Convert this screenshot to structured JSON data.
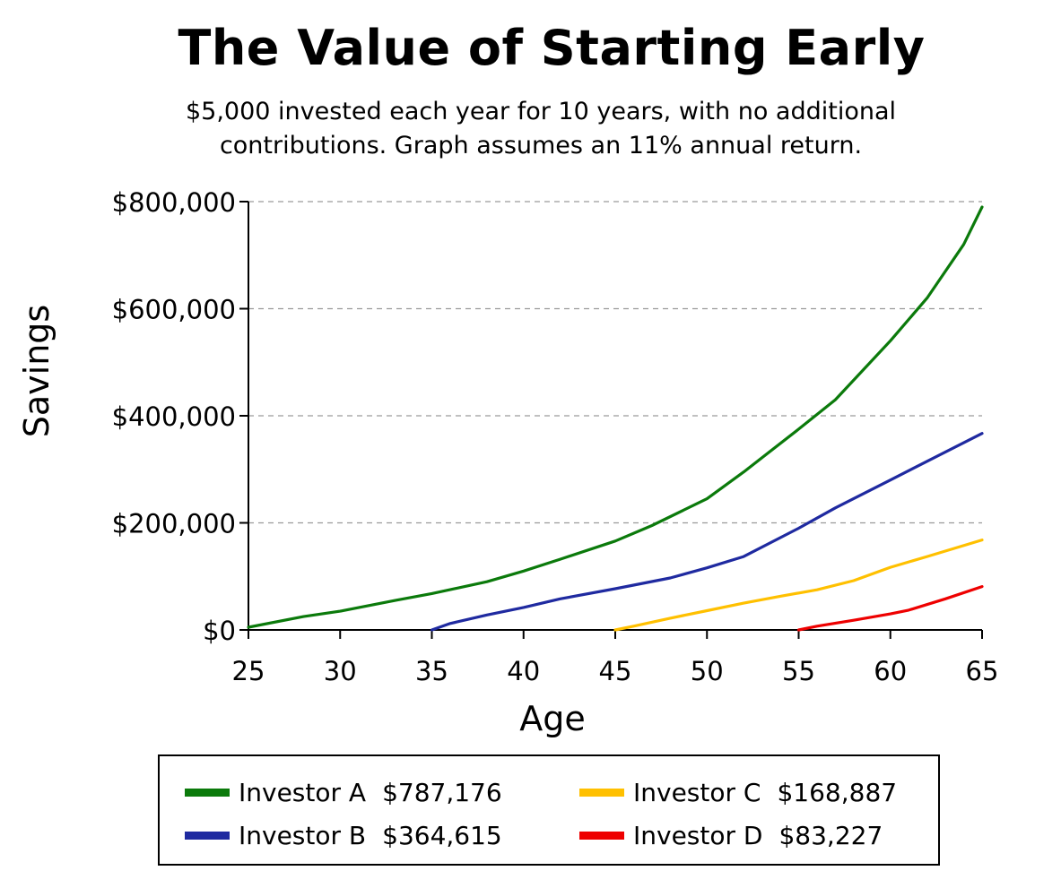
{
  "chart_data": {
    "type": "line",
    "title": "The Value of Starting Early",
    "subtitle_lines": [
      "$5,000 invested each year for 10 years, with no additional",
      "contributions. Graph assumes an 11% annual return."
    ],
    "xlabel": "Age",
    "ylabel": "Savings",
    "xlim": [
      25,
      65
    ],
    "ylim": [
      0,
      800000
    ],
    "x_ticks": [
      25,
      30,
      35,
      40,
      45,
      50,
      55,
      60,
      65
    ],
    "y_ticks": [
      0,
      200000,
      400000,
      600000,
      800000
    ],
    "y_tick_labels": [
      "$0",
      "$200,000",
      "$400,000",
      "$600,000",
      "$800,000"
    ],
    "grid": "horizontal dashed",
    "series": [
      {
        "name": "Investor A",
        "final_label": "$787,176",
        "color": "#0b7a0b",
        "points": [
          [
            25,
            5000
          ],
          [
            28,
            25000
          ],
          [
            30,
            35000
          ],
          [
            33,
            55000
          ],
          [
            35,
            68000
          ],
          [
            38,
            90000
          ],
          [
            40,
            110000
          ],
          [
            42,
            132000
          ],
          [
            45,
            166000
          ],
          [
            47,
            195000
          ],
          [
            50,
            245000
          ],
          [
            52,
            295000
          ],
          [
            55,
            375000
          ],
          [
            57,
            430000
          ],
          [
            60,
            540000
          ],
          [
            62,
            620000
          ],
          [
            64,
            720000
          ],
          [
            65,
            790000
          ]
        ]
      },
      {
        "name": "Investor B",
        "final_label": "$364,615",
        "color": "#1f2aa0",
        "points": [
          [
            35,
            0
          ],
          [
            36,
            12000
          ],
          [
            38,
            28000
          ],
          [
            40,
            42000
          ],
          [
            42,
            58000
          ],
          [
            45,
            77000
          ],
          [
            48,
            97000
          ],
          [
            50,
            116000
          ],
          [
            52,
            137000
          ],
          [
            55,
            190000
          ],
          [
            57,
            228000
          ],
          [
            60,
            280000
          ],
          [
            62,
            315000
          ],
          [
            65,
            367000
          ]
        ]
      },
      {
        "name": "Investor C",
        "final_label": "$168,887",
        "color": "#ffc000",
        "points": [
          [
            45,
            0
          ],
          [
            46,
            7000
          ],
          [
            48,
            22000
          ],
          [
            50,
            36000
          ],
          [
            52,
            50000
          ],
          [
            54,
            63000
          ],
          [
            56,
            75000
          ],
          [
            58,
            92000
          ],
          [
            60,
            117000
          ],
          [
            62,
            137000
          ],
          [
            65,
            168000
          ]
        ]
      },
      {
        "name": "Investor D",
        "final_label": "$83,227",
        "color": "#ee0000",
        "points": [
          [
            55,
            0
          ],
          [
            56,
            7000
          ],
          [
            58,
            18000
          ],
          [
            60,
            30000
          ],
          [
            61,
            37000
          ],
          [
            63,
            58000
          ],
          [
            65,
            81000
          ]
        ]
      }
    ],
    "legend_position": "bottom"
  }
}
